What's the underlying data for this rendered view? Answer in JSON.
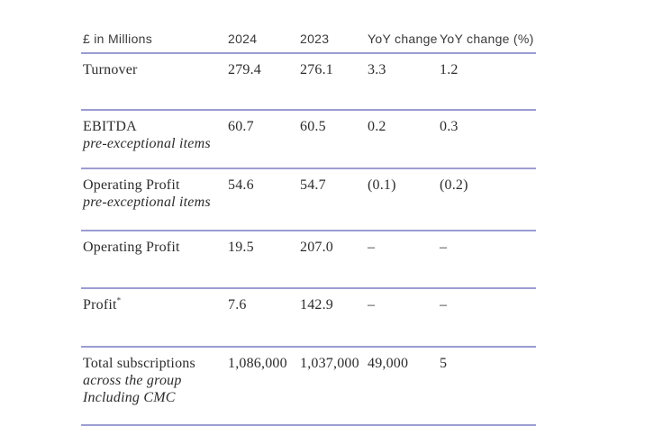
{
  "table": {
    "columns": [
      {
        "label": "£ in Millions"
      },
      {
        "label": "2024"
      },
      {
        "label": "2023"
      },
      {
        "label": "YoY change"
      },
      {
        "label": "YoY change (%)"
      }
    ],
    "rows": [
      {
        "label": "Turnover",
        "sup": "",
        "sub": [],
        "values": [
          "279.4",
          "276.1",
          "3.3",
          "1.2"
        ]
      },
      {
        "label": "EBITDA",
        "sup": "",
        "sub": [
          "pre-exceptional items"
        ],
        "values": [
          "60.7",
          "60.5",
          "0.2",
          "0.3"
        ]
      },
      {
        "label": "Operating Profit",
        "sup": "",
        "sub": [
          "pre-exceptional items"
        ],
        "values": [
          "54.6",
          "54.7",
          "(0.1)",
          "(0.2)"
        ]
      },
      {
        "label": "Operating Profit",
        "sup": "",
        "sub": [],
        "values": [
          "19.5",
          "207.0",
          "–",
          "–"
        ]
      },
      {
        "label": "Profit",
        "sup": "*",
        "sub": [],
        "values": [
          "7.6",
          "142.9",
          "–",
          "–"
        ]
      },
      {
        "label": "Total subscriptions",
        "sup": "",
        "sub": [
          "across the group",
          "Including CMC"
        ],
        "values": [
          "1,086,000",
          "1,037,000",
          "49,000",
          "5"
        ]
      }
    ]
  },
  "colors": {
    "rule": "#9c9cd2",
    "body_text": "#2c2c2c",
    "header_text": "#3a3a3a",
    "background": "#ffffff"
  }
}
